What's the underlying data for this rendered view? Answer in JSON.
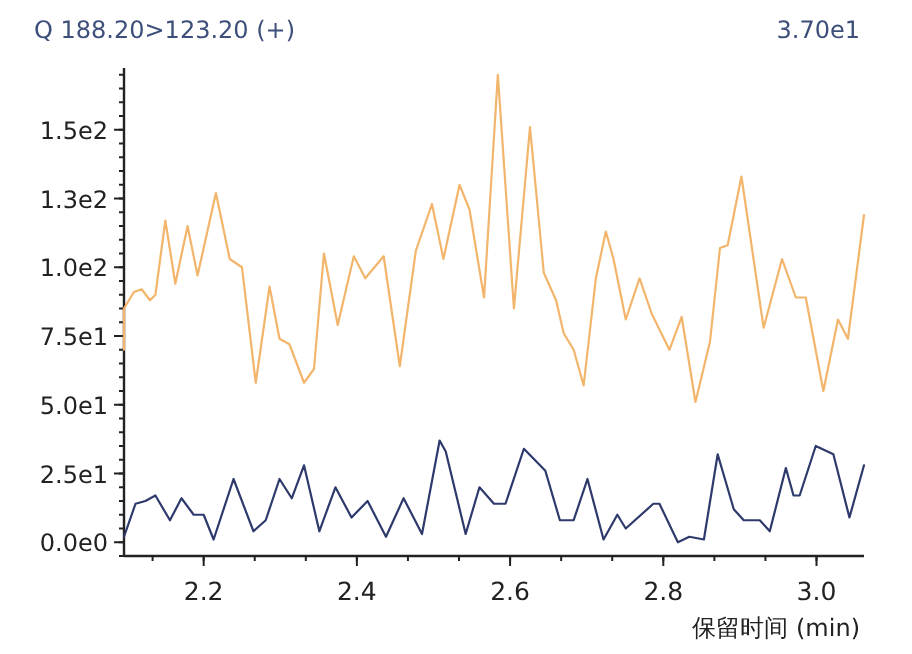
{
  "chart_data": {
    "type": "line",
    "title": "Q 188.20>123.20 (+)",
    "annotations": [
      "3.70e1"
    ],
    "xlabel": "保留时间  (min)",
    "xlim": [
      2.096,
      3.062
    ],
    "ylim": [
      -5,
      171
    ],
    "xticks": [
      2.2,
      2.4,
      2.6,
      2.8,
      {
        "value": 3,
        "label": "3.0"
      }
    ],
    "yticks": [
      {
        "value": 0,
        "label": "0.0e0"
      },
      {
        "value": 25,
        "label": "2.5e1"
      },
      {
        "value": 50,
        "label": "5.0e1"
      },
      {
        "value": 75,
        "label": "7.5e1"
      },
      {
        "value": 100,
        "label": "1.0e2"
      },
      {
        "value": 125,
        "label": "1.3e2"
      },
      {
        "value": 150,
        "label": "1.5e2"
      }
    ],
    "grid": false,
    "marker": "none",
    "line_style": "solid",
    "series": [
      {
        "color": "#f2b56b",
        "x": [
          2.096,
          2.096,
          2.109,
          2.119,
          2.13,
          2.137,
          2.15,
          2.163,
          2.179,
          2.192,
          2.216,
          2.234,
          2.25,
          2.268,
          2.286,
          2.299,
          2.312,
          2.331,
          2.344,
          2.357,
          2.375,
          2.396,
          2.411,
          2.435,
          2.456,
          2.477,
          2.498,
          2.513,
          2.534,
          2.547,
          2.566,
          2.584,
          2.605,
          2.626,
          2.644,
          2.66,
          2.67,
          2.683,
          2.696,
          2.712,
          2.725,
          2.735,
          2.751,
          2.769,
          2.785,
          2.808,
          2.824,
          2.842,
          2.861,
          2.874,
          2.884,
          2.902,
          2.931,
          2.955,
          2.973,
          2.986,
          3.009,
          3.028,
          3.041,
          3.062
        ],
        "values": [
          70,
          85,
          91,
          92,
          88,
          90,
          117,
          94,
          115,
          97,
          127,
          103,
          100,
          58,
          93,
          74,
          72,
          58,
          63,
          105,
          79,
          104,
          96,
          104,
          64,
          106,
          123,
          103,
          130,
          121,
          89,
          170,
          85,
          151,
          98,
          88,
          76,
          70,
          57,
          96,
          113,
          103,
          81,
          96,
          83,
          70,
          82,
          51,
          73,
          107,
          108,
          133,
          78,
          103,
          89,
          89,
          55,
          81,
          74,
          119
        ]
      },
      {
        "color": "#2e3a6b",
        "x": [
          2.096,
          2.111,
          2.124,
          2.137,
          2.156,
          2.171,
          2.187,
          2.2,
          2.213,
          2.239,
          2.265,
          2.281,
          2.299,
          2.315,
          2.331,
          2.351,
          2.372,
          2.393,
          2.414,
          2.438,
          2.461,
          2.485,
          2.508,
          2.516,
          2.542,
          2.56,
          2.579,
          2.594,
          2.618,
          2.646,
          2.665,
          2.683,
          2.701,
          2.722,
          2.74,
          2.751,
          2.787,
          2.795,
          2.819,
          2.834,
          2.853,
          2.871,
          2.892,
          2.905,
          2.926,
          2.939,
          2.96,
          2.97,
          2.978,
          2.999,
          3.022,
          3.043,
          3.062
        ],
        "values": [
          2,
          14,
          15,
          17,
          8,
          16,
          10,
          10,
          1,
          23,
          4,
          8,
          23,
          16,
          28,
          4,
          20,
          9,
          15,
          2,
          16,
          3,
          37,
          33,
          3,
          20,
          14,
          14,
          34,
          26,
          8,
          8,
          23,
          1,
          10,
          5,
          14,
          14,
          0,
          2,
          1,
          32,
          12,
          8,
          8,
          4,
          27,
          17,
          17,
          35,
          32,
          9,
          28
        ]
      }
    ]
  }
}
